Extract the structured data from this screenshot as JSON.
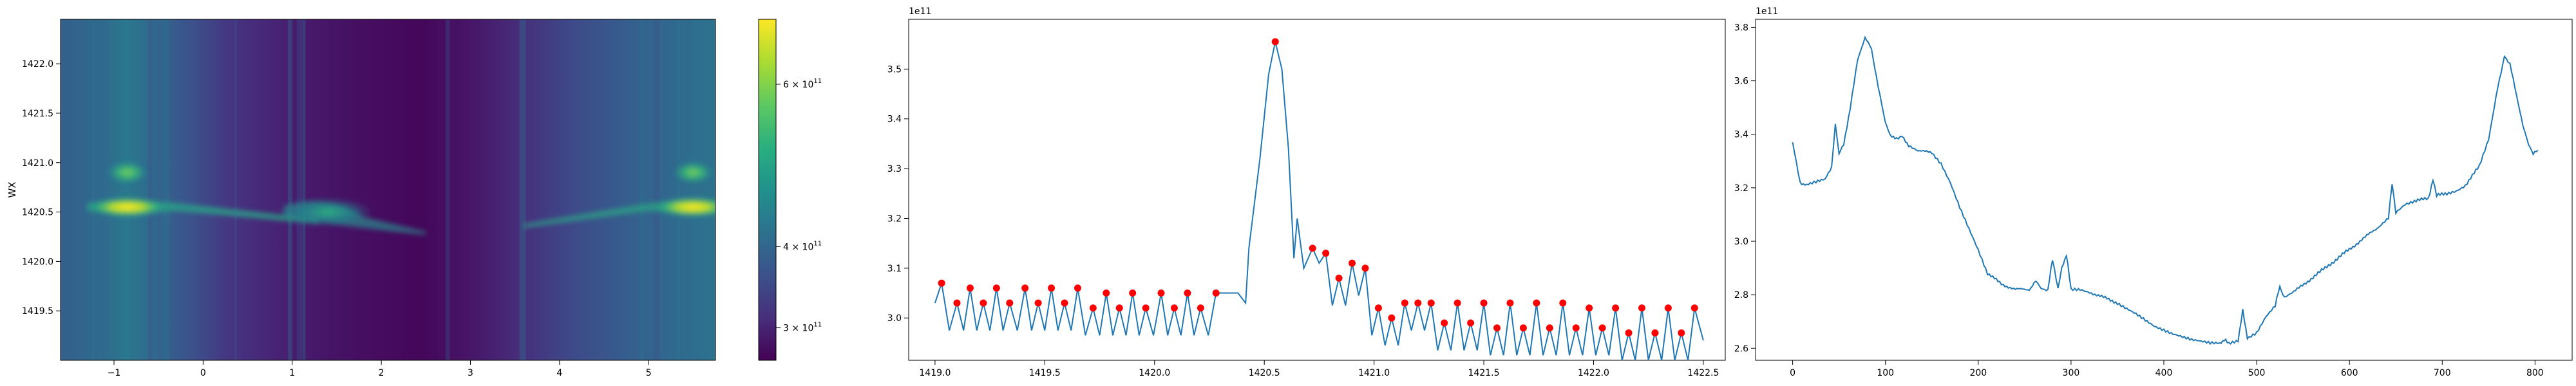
{
  "chart_data": [
    {
      "type": "heatmap",
      "title": "",
      "xlabel": "",
      "ylabel": "WX",
      "xlim": [
        -1.6,
        5.75
      ],
      "ylim": [
        1419.0,
        1422.45
      ],
      "xticks": [
        "−1",
        "0",
        "1",
        "2",
        "3",
        "4",
        "5"
      ],
      "xtick_values": [
        -1,
        0,
        1,
        2,
        3,
        4,
        5
      ],
      "yticks": [
        "1419.5",
        "1420.0",
        "1420.5",
        "1421.0",
        "1421.5",
        "1422.0"
      ],
      "ytick_values": [
        1419.5,
        1420.0,
        1420.5,
        1421.0,
        1421.5,
        1422.0
      ],
      "colormap": "viridis",
      "colorbar": {
        "range": [
          260000000000.0,
          680000000000.0
        ],
        "ticks": [
          {
            "value": 300000000000.0,
            "label": "3 × 10",
            "exp": "11"
          },
          {
            "value": 400000000000.0,
            "label": "4 × 10",
            "exp": "11"
          },
          {
            "value": 600000000000.0,
            "label": "6 × 10",
            "exp": "11"
          }
        ]
      },
      "features": [
        {
          "x": -0.85,
          "y": 1420.55,
          "value": 640000000000.0
        },
        {
          "x": -0.85,
          "y": 1420.9,
          "value": 440000000000.0
        },
        {
          "x": 5.5,
          "y": 1420.55,
          "value": 650000000000.0
        },
        {
          "x": 5.5,
          "y": 1420.9,
          "value": 450000000000.0
        },
        {
          "x": 1.4,
          "y": 1420.5,
          "value": 400000000000.0
        },
        {
          "x": 2.8,
          "y": 1420.5,
          "value": 270000000000.0
        }
      ]
    },
    {
      "type": "line",
      "title": "",
      "xlabel": "",
      "ylabel": "",
      "offset_label": "1e11",
      "xlim": [
        1418.88,
        1422.6
      ],
      "ylim": [
        2.915,
        3.6
      ],
      "xticks": [
        "1419.0",
        "1419.5",
        "1420.0",
        "1420.5",
        "1421.0",
        "1421.5",
        "1422.0",
        "1422.5"
      ],
      "xtick_values": [
        1419.0,
        1419.5,
        1420.0,
        1420.5,
        1421.0,
        1421.5,
        1422.0,
        1422.5
      ],
      "yticks": [
        "3.0",
        "3.1",
        "3.2",
        "3.3",
        "3.4",
        "3.5"
      ],
      "ytick_values": [
        3.0,
        3.1,
        3.2,
        3.3,
        3.4,
        3.5
      ],
      "line_color": "#1f77b4",
      "marker_color": "#ff0000",
      "series": [
        {
          "x_range": [
            1419.0,
            1422.5
          ],
          "baseline": 3.0,
          "peak_x": 1420.55,
          "peak_y": 3.555,
          "peak_marker": [
            1420.55,
            3.555
          ],
          "markers_left": [
            [
              1419.03,
              3.07
            ],
            [
              1419.1,
              3.03
            ],
            [
              1419.16,
              3.06
            ],
            [
              1419.22,
              3.03
            ],
            [
              1419.28,
              3.06
            ],
            [
              1419.34,
              3.03
            ],
            [
              1419.41,
              3.06
            ],
            [
              1419.47,
              3.03
            ],
            [
              1419.53,
              3.06
            ],
            [
              1419.59,
              3.03
            ],
            [
              1419.65,
              3.06
            ],
            [
              1419.72,
              3.02
            ],
            [
              1419.78,
              3.05
            ],
            [
              1419.84,
              3.02
            ],
            [
              1419.9,
              3.05
            ],
            [
              1419.96,
              3.02
            ],
            [
              1420.03,
              3.05
            ],
            [
              1420.09,
              3.02
            ],
            [
              1420.15,
              3.05
            ],
            [
              1420.21,
              3.02
            ],
            [
              1420.28,
              3.05
            ]
          ],
          "markers_right": [
            [
              1420.72,
              3.14
            ],
            [
              1420.78,
              3.13
            ],
            [
              1420.84,
              3.08
            ],
            [
              1420.9,
              3.11
            ],
            [
              1420.96,
              3.1
            ],
            [
              1421.02,
              3.02
            ],
            [
              1421.08,
              3.0
            ],
            [
              1421.14,
              3.03
            ],
            [
              1421.2,
              3.03
            ],
            [
              1421.26,
              3.03
            ],
            [
              1421.32,
              2.99
            ],
            [
              1421.38,
              3.03
            ],
            [
              1421.44,
              2.99
            ],
            [
              1421.5,
              3.03
            ],
            [
              1421.56,
              2.98
            ],
            [
              1421.62,
              3.03
            ],
            [
              1421.68,
              2.98
            ],
            [
              1421.74,
              3.03
            ],
            [
              1421.8,
              2.98
            ],
            [
              1421.86,
              3.03
            ],
            [
              1421.92,
              2.98
            ],
            [
              1421.98,
              3.02
            ],
            [
              1422.04,
              2.98
            ],
            [
              1422.1,
              3.02
            ],
            [
              1422.16,
              2.97
            ],
            [
              1422.22,
              3.02
            ],
            [
              1422.28,
              2.97
            ],
            [
              1422.34,
              3.02
            ],
            [
              1422.4,
              2.97
            ],
            [
              1422.46,
              3.02
            ]
          ]
        }
      ]
    },
    {
      "type": "line",
      "title": "",
      "xlabel": "",
      "ylabel": "",
      "offset_label": "1e11",
      "xlim": [
        -40,
        840
      ],
      "ylim": [
        2.555,
        3.83
      ],
      "xticks": [
        "0",
        "100",
        "200",
        "300",
        "400",
        "500",
        "600",
        "700",
        "800"
      ],
      "xtick_values": [
        0,
        100,
        200,
        300,
        400,
        500,
        600,
        700,
        800
      ],
      "yticks": [
        "2.6",
        "2.8",
        "3.0",
        "3.2",
        "3.4",
        "3.6",
        "3.8"
      ],
      "ytick_values": [
        2.6,
        2.8,
        3.0,
        3.2,
        3.4,
        3.6,
        3.8
      ],
      "line_color": "#1f77b4",
      "series": [
        {
          "anchors": [
            [
              0,
              3.37
            ],
            [
              8,
              3.22
            ],
            [
              15,
              3.21
            ],
            [
              25,
              3.22
            ],
            [
              35,
              3.23
            ],
            [
              42,
              3.28
            ],
            [
              46,
              3.44
            ],
            [
              50,
              3.33
            ],
            [
              55,
              3.36
            ],
            [
              62,
              3.5
            ],
            [
              70,
              3.68
            ],
            [
              78,
              3.76
            ],
            [
              85,
              3.72
            ],
            [
              92,
              3.58
            ],
            [
              100,
              3.44
            ],
            [
              105,
              3.4
            ],
            [
              112,
              3.38
            ],
            [
              118,
              3.39
            ],
            [
              125,
              3.36
            ],
            [
              135,
              3.34
            ],
            [
              150,
              3.33
            ],
            [
              160,
              3.29
            ],
            [
              170,
              3.22
            ],
            [
              180,
              3.13
            ],
            [
              190,
              3.05
            ],
            [
              200,
              2.97
            ],
            [
              210,
              2.88
            ],
            [
              225,
              2.84
            ],
            [
              240,
              2.82
            ],
            [
              255,
              2.82
            ],
            [
              262,
              2.85
            ],
            [
              268,
              2.82
            ],
            [
              275,
              2.82
            ],
            [
              280,
              2.93
            ],
            [
              286,
              2.82
            ],
            [
              290,
              2.9
            ],
            [
              295,
              2.95
            ],
            [
              300,
              2.82
            ],
            [
              310,
              2.82
            ],
            [
              320,
              2.81
            ],
            [
              335,
              2.79
            ],
            [
              350,
              2.77
            ],
            [
              370,
              2.73
            ],
            [
              390,
              2.68
            ],
            [
              410,
              2.65
            ],
            [
              430,
              2.63
            ],
            [
              450,
              2.62
            ],
            [
              460,
              2.62
            ],
            [
              465,
              2.63
            ],
            [
              470,
              2.62
            ],
            [
              480,
              2.63
            ],
            [
              485,
              2.74
            ],
            [
              490,
              2.64
            ],
            [
              500,
              2.66
            ],
            [
              510,
              2.72
            ],
            [
              520,
              2.76
            ],
            [
              525,
              2.83
            ],
            [
              530,
              2.79
            ],
            [
              540,
              2.81
            ],
            [
              555,
              2.85
            ],
            [
              570,
              2.89
            ],
            [
              585,
              2.93
            ],
            [
              600,
              2.97
            ],
            [
              615,
              3.01
            ],
            [
              630,
              3.05
            ],
            [
              642,
              3.09
            ],
            [
              646,
              3.22
            ],
            [
              650,
              3.11
            ],
            [
              660,
              3.14
            ],
            [
              670,
              3.15
            ],
            [
              685,
              3.16
            ],
            [
              690,
              3.23
            ],
            [
              694,
              3.17
            ],
            [
              705,
              3.18
            ],
            [
              715,
              3.19
            ],
            [
              725,
              3.21
            ],
            [
              740,
              3.28
            ],
            [
              750,
              3.38
            ],
            [
              760,
              3.58
            ],
            [
              767,
              3.69
            ],
            [
              773,
              3.66
            ],
            [
              780,
              3.55
            ],
            [
              787,
              3.43
            ],
            [
              793,
              3.36
            ],
            [
              798,
              3.33
            ],
            [
              803,
              3.34
            ]
          ]
        }
      ]
    }
  ]
}
